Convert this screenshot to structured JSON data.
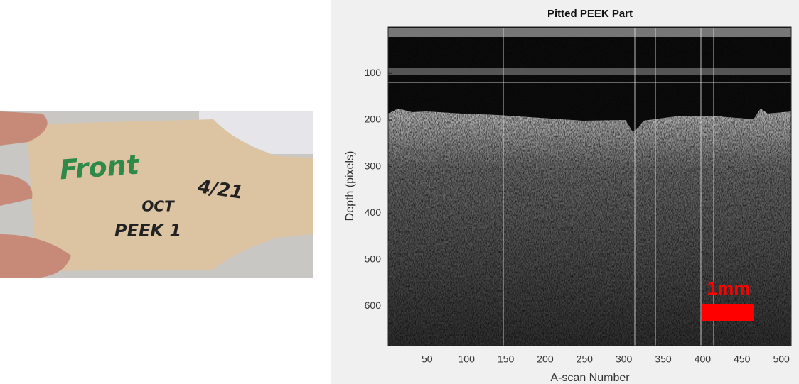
{
  "photo": {
    "labels": [
      "Front",
      "4/21",
      "OCT",
      "PEEK 1"
    ]
  },
  "chart_data": {
    "type": "image",
    "title": "Pitted PEEK Part",
    "xlabel": "A-scan Number",
    "ylabel": "Depth (pixels)",
    "xlim": [
      0.5,
      512.5
    ],
    "ylim": [
      0.5,
      684.5
    ],
    "y_reversed": true,
    "xticks": [
      50,
      100,
      150,
      200,
      250,
      300,
      350,
      400,
      450,
      500
    ],
    "yticks": [
      100,
      200,
      300,
      400,
      500,
      600
    ],
    "annotation": "1mm",
    "annotation_color": "#ff0000"
  }
}
